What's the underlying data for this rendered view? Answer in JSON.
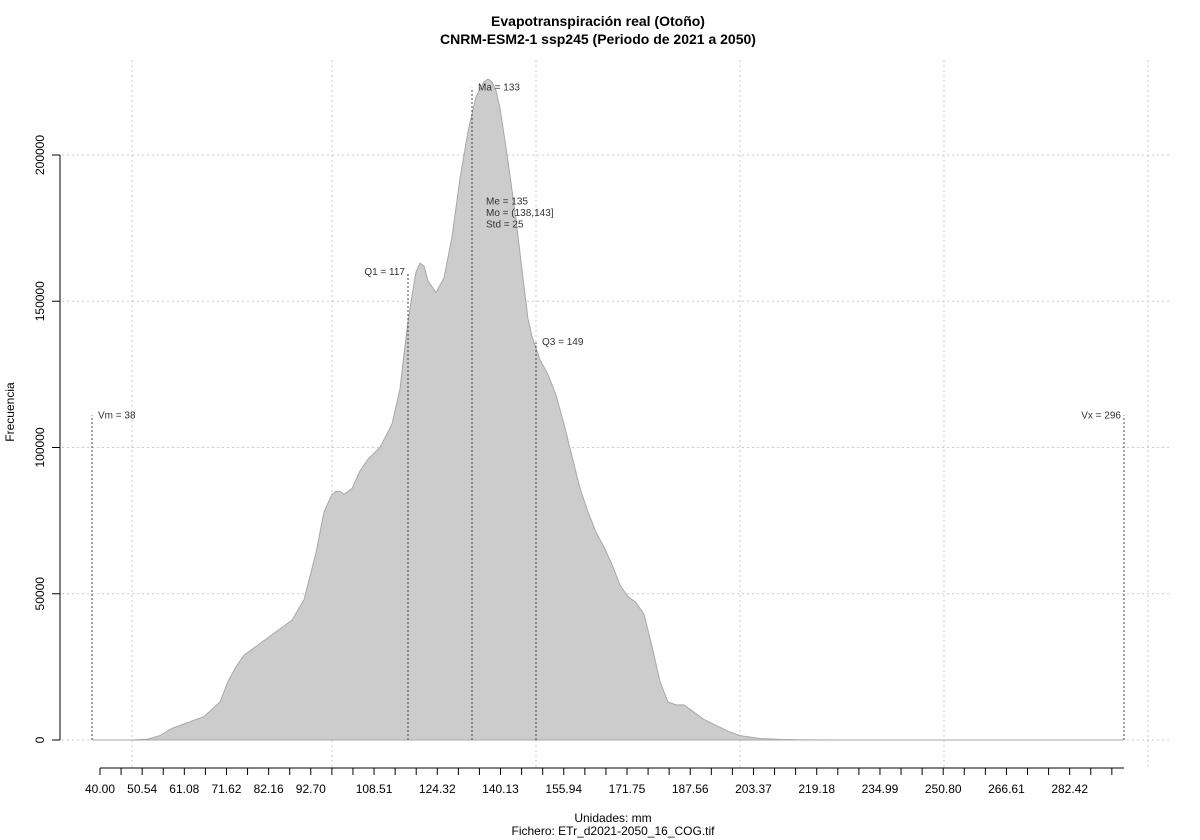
{
  "chart_data": {
    "type": "area",
    "title": "Evapotranspiración real (Otoño)",
    "subtitle": "CNRM-ESM2-1 ssp245 (Periodo de 2021 a 2050)",
    "xlabel": "Unidades: mm",
    "caption": "Fichero: ETr_d2021-2050_16_COG.tif",
    "ylabel": "Frecuencia",
    "xlim": [
      38,
      296
    ],
    "ylim": [
      0,
      225000
    ],
    "x_ticks": [
      40.0,
      50.54,
      61.08,
      71.62,
      82.16,
      92.7,
      108.51,
      124.32,
      140.13,
      155.94,
      171.75,
      187.56,
      203.37,
      219.18,
      234.99,
      250.8,
      266.61,
      282.42
    ],
    "x_tick_labels": [
      "40.00",
      "50.54",
      "61.08",
      "71.62",
      "82.16",
      "92.70",
      "108.51",
      "124.32",
      "140.13",
      "155.94",
      "171.75",
      "187.56",
      "203.37",
      "219.18",
      "234.99",
      "250.80",
      "266.61",
      "282.42"
    ],
    "x_minor_ticks": [
      45.27,
      55.81,
      66.35,
      76.89,
      87.43,
      97.97,
      103.24,
      113.78,
      119.05,
      129.59,
      134.86,
      145.4,
      150.67,
      161.21,
      166.48,
      177.02,
      182.29,
      192.83,
      198.1,
      208.64,
      213.91,
      224.45,
      229.72,
      240.26,
      245.53,
      256.07,
      261.34,
      271.88,
      277.15,
      287.69,
      292.96
    ],
    "y_ticks": [
      0,
      50000,
      100000,
      150000,
      200000
    ],
    "y_tick_labels": [
      "0",
      "50000",
      "100000",
      "150000",
      "200000"
    ],
    "x_grid": [
      48,
      98,
      149,
      200,
      251,
      302
    ],
    "y_grid": true,
    "series": [
      {
        "x": [
          38,
          48,
          52,
          55,
          58,
          62,
          66,
          70,
          72,
          74,
          76,
          78,
          80,
          82,
          85,
          88,
          91,
          94,
          96,
          98,
          99,
          100,
          101,
          103,
          105,
          107,
          110,
          113,
          115,
          116,
          117,
          118,
          119,
          120,
          121,
          122,
          124,
          126,
          128,
          130,
          132,
          134,
          136,
          137,
          138,
          139,
          140,
          142,
          144,
          146,
          147,
          148,
          149,
          150,
          152,
          154,
          156,
          158,
          160,
          162,
          164,
          166,
          168,
          170,
          172,
          174,
          176,
          178,
          180,
          182,
          184,
          186,
          188,
          191,
          194,
          197,
          200,
          205,
          210,
          215,
          220,
          225,
          235,
          250,
          270,
          290,
          296
        ],
        "y": [
          0,
          0,
          300,
          1500,
          4000,
          6000,
          8000,
          13000,
          20000,
          25000,
          29000,
          31000,
          33000,
          35000,
          38000,
          41000,
          48000,
          64000,
          78000,
          84000,
          85000,
          85000,
          84000,
          86000,
          92000,
          96000,
          100000,
          108000,
          120000,
          132000,
          143000,
          152000,
          160000,
          163000,
          162000,
          157000,
          153000,
          158000,
          172000,
          192000,
          208000,
          220000,
          225000,
          226000,
          225000,
          222000,
          216000,
          198000,
          178000,
          155000,
          144000,
          138000,
          134000,
          130000,
          125000,
          118000,
          108000,
          97000,
          86000,
          78000,
          71000,
          66000,
          60000,
          53000,
          49000,
          47000,
          43000,
          32000,
          20000,
          13000,
          12000,
          12000,
          10000,
          7000,
          5000,
          3000,
          1500,
          500,
          200,
          100,
          50,
          0,
          0,
          0,
          0,
          0,
          0
        ]
      }
    ],
    "fill_color": "#cccccc",
    "stroke_color": "#a8a8a8",
    "annotations": [
      {
        "label": "Vm = 38",
        "x": 38,
        "y_top": 111000,
        "label_side": "right"
      },
      {
        "label": "Q1 = 117",
        "x": 117,
        "y_top": 160000,
        "label_side": "left"
      },
      {
        "label": "Ma = 133",
        "x": 133,
        "y_top": 223000,
        "label_side": "right"
      },
      {
        "label": "Q3 = 149",
        "x": 149,
        "y_top": 136000,
        "label_side": "right"
      },
      {
        "label": "Vx = 296",
        "x": 296,
        "y_top": 111000,
        "label_side": "left"
      }
    ],
    "stats_block": {
      "x": 136,
      "y": 180000,
      "lines": [
        "Me = 135",
        "Mo = (138,143]",
        "Std = 25"
      ]
    }
  }
}
